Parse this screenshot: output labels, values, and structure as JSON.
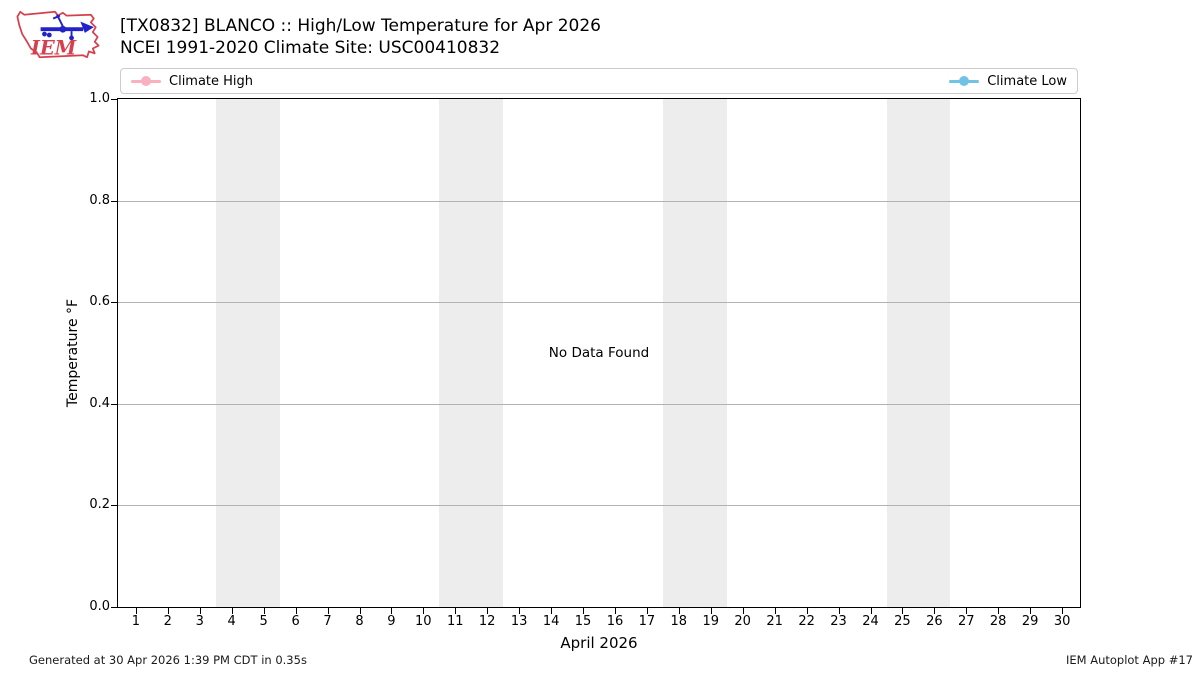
{
  "logo": {
    "text": "IEM"
  },
  "footer": {
    "generated": "Generated at 30 Apr 2026 1:39 PM CDT in 0.35s",
    "app": "IEM Autoplot App #17"
  },
  "chart_data": {
    "type": "line",
    "title": "[TX0832] BLANCO :: High/Low Temperature for Apr 2026",
    "subtitle": "NCEI 1991-2020 Climate Site: USC00410832",
    "xlabel": "April 2026",
    "ylabel": "Temperature °F",
    "x_ticks": [
      1,
      2,
      3,
      4,
      5,
      6,
      7,
      8,
      9,
      10,
      11,
      12,
      13,
      14,
      15,
      16,
      17,
      18,
      19,
      20,
      21,
      22,
      23,
      24,
      25,
      26,
      27,
      28,
      29,
      30
    ],
    "y_ticks": [
      "0.0",
      "0.2",
      "0.4",
      "0.6",
      "0.8",
      "1.0"
    ],
    "xlim": [
      0.44,
      30.56
    ],
    "ylim": [
      0.0,
      1.0
    ],
    "grid": "horizontal-only",
    "gridline_color": "#b2b2b2",
    "legend_position": "top-inside-box",
    "legend": [
      {
        "label": "Climate High",
        "color": "#f9b0c1"
      },
      {
        "label": "Climate Low",
        "color": "#72c2e6"
      }
    ],
    "series": [
      {
        "name": "Climate High",
        "x": [],
        "values": []
      },
      {
        "name": "Climate Low",
        "x": [],
        "values": []
      }
    ],
    "no_data_text": "No Data Found",
    "weekend_bands": {
      "color": "#ededed",
      "x_ranges": [
        [
          3.5,
          5.5
        ],
        [
          10.5,
          12.5
        ],
        [
          17.5,
          19.5
        ],
        [
          24.5,
          26.5
        ]
      ]
    }
  }
}
